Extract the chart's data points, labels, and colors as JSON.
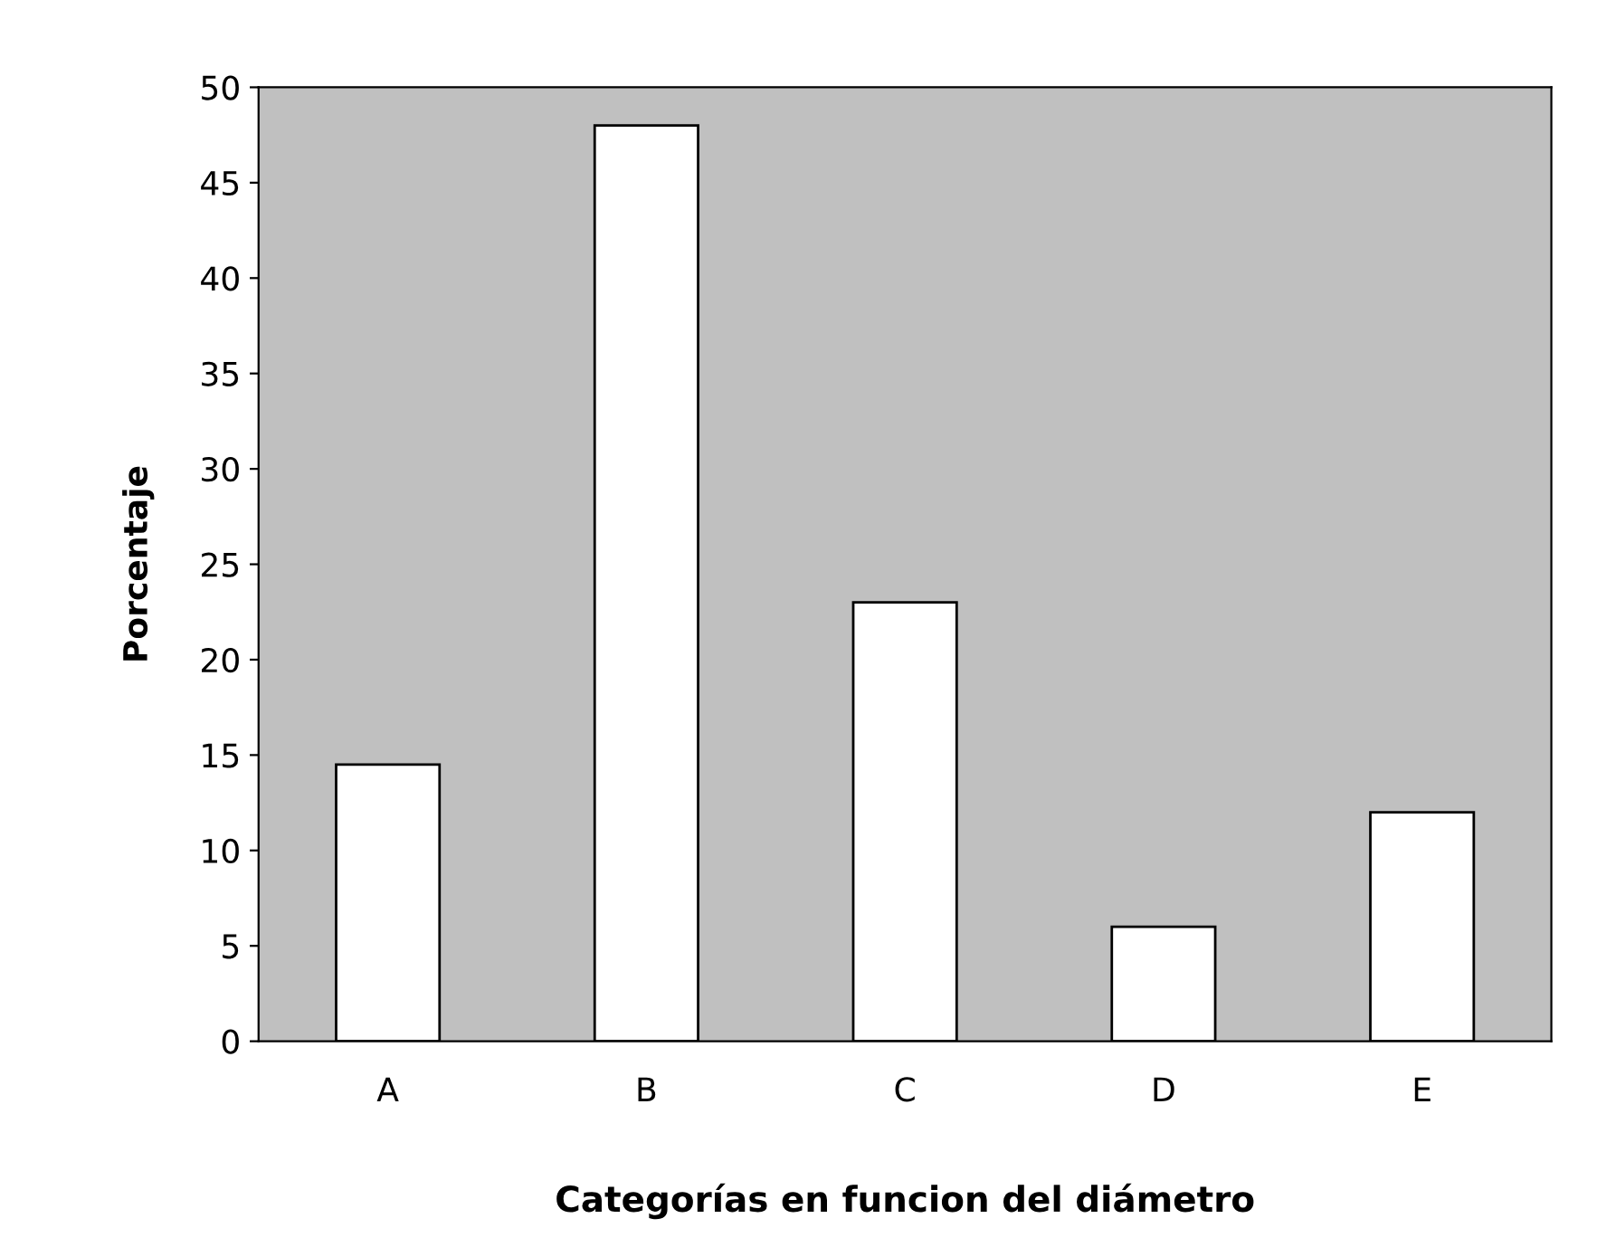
{
  "chart_data": {
    "type": "bar",
    "xlabel": "Categorías en funcion del diámetro",
    "ylabel": "Porcentaje",
    "categories": [
      "A",
      "B",
      "C",
      "D",
      "E"
    ],
    "values": [
      14.5,
      48,
      23,
      6,
      12
    ],
    "color": "#ffffff",
    "ylim": [
      0,
      50
    ],
    "yticks": [
      0,
      5,
      10,
      15,
      20,
      25,
      30,
      35,
      40,
      45,
      50
    ],
    "grid": false,
    "legend": false
  }
}
